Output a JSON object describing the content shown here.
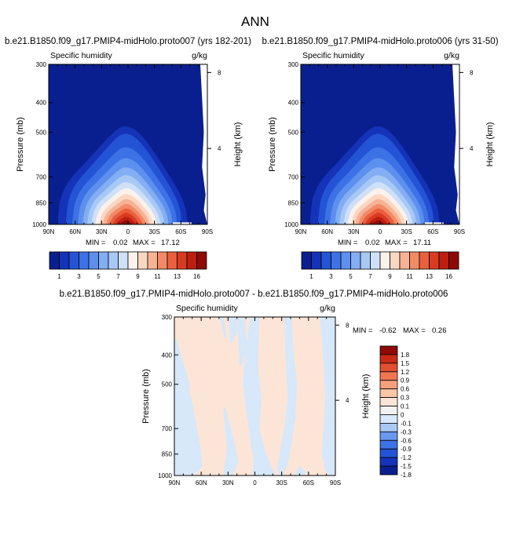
{
  "figure_title": "ANN",
  "colors": {
    "seq": [
      "#0a1f8f",
      "#1533b8",
      "#2454d6",
      "#3d72e6",
      "#5d8fee",
      "#83aef3",
      "#a8c9f6",
      "#cfe0f8",
      "#fbf2ec",
      "#fbd7c2",
      "#f7b295",
      "#f28a66",
      "#ea5f3e",
      "#d93b22",
      "#bd1e10",
      "#8f0a07"
    ],
    "diff": [
      "#0a1f8f",
      "#1533b8",
      "#2454d6",
      "#3d72e6",
      "#6a98ef",
      "#a8c9f6",
      "#d6e8fa",
      "#f2f2f2",
      "#fce5d6",
      "#fbc6a6",
      "#f6a07c",
      "#ef7651",
      "#e34f31",
      "#c92a17",
      "#8f0a07"
    ]
  },
  "chart_data": [
    {
      "type": "heatmap",
      "id": "panel1",
      "title": "b.e21.B1850.f09_g17.PMIP4-midHolo.proto007 (yrs 182-201)",
      "left_label": "Specific humidity",
      "right_label": "g/kg",
      "ylabel": "Pressure (mb)",
      "ylabel_right": "Height (km)",
      "x_ticks": [
        "90N",
        "60N",
        "30N",
        "0",
        "30S",
        "60S",
        "90S"
      ],
      "x_values": [
        90,
        60,
        30,
        0,
        -30,
        -60,
        -90
      ],
      "xlim": [
        90,
        -90
      ],
      "y_ticks": [
        300,
        400,
        500,
        700,
        850,
        1000
      ],
      "ylim": [
        1000,
        300
      ],
      "height_ticks": [
        8,
        4
      ],
      "min": "0.02",
      "max": "17.12",
      "min_label": "MIN =",
      "max_label": "MAX =",
      "levels": [
        1,
        2,
        3,
        4,
        5,
        6,
        7,
        8,
        9,
        10,
        11,
        12,
        13,
        14,
        16
      ],
      "colorbar_labels": [
        "1",
        "3",
        "5",
        "7",
        "9",
        "11",
        "13",
        "16"
      ]
    },
    {
      "type": "heatmap",
      "id": "panel2",
      "title": "b.e21.B1850.f09_g17.PMIP4-midHolo.proto006 (yrs 31-50)",
      "left_label": "Specific humidity",
      "right_label": "g/kg",
      "ylabel": "Pressure (mb)",
      "ylabel_right": "Height (km)",
      "x_ticks": [
        "90N",
        "60N",
        "30N",
        "0",
        "30S",
        "60S",
        "90S"
      ],
      "x_values": [
        90,
        60,
        30,
        0,
        -30,
        -60,
        -90
      ],
      "xlim": [
        90,
        -90
      ],
      "y_ticks": [
        300,
        400,
        500,
        700,
        850,
        1000
      ],
      "ylim": [
        1000,
        300
      ],
      "height_ticks": [
        8,
        4
      ],
      "min": "0.02",
      "max": "17.11",
      "min_label": "MIN =",
      "max_label": "MAX =",
      "levels": [
        1,
        2,
        3,
        4,
        5,
        6,
        7,
        8,
        9,
        10,
        11,
        12,
        13,
        14,
        16
      ],
      "colorbar_labels": [
        "1",
        "3",
        "5",
        "7",
        "9",
        "11",
        "13",
        "16"
      ]
    },
    {
      "type": "heatmap",
      "id": "panel3",
      "title": "b.e21.B1850.f09_g17.PMIP4-midHolo.proto007 - b.e21.B1850.f09_g17.PMIP4-midHolo.proto006",
      "left_label": "Specific humidity",
      "right_label": "g/kg",
      "ylabel": "Pressure (mb)",
      "ylabel_right": "Height (km)",
      "x_ticks": [
        "90N",
        "60N",
        "30N",
        "0",
        "30S",
        "60S",
        "90S"
      ],
      "x_values": [
        90,
        60,
        30,
        0,
        -30,
        -60,
        -90
      ],
      "xlim": [
        90,
        -90
      ],
      "y_ticks": [
        300,
        400,
        500,
        700,
        850,
        1000
      ],
      "ylim": [
        1000,
        300
      ],
      "height_ticks": [
        8,
        4
      ],
      "min": "-0.62",
      "max": "0.26",
      "min_label": "MIN =",
      "max_label": "MAX =",
      "levels": [
        -1.8,
        -1.5,
        -1.2,
        -0.9,
        -0.6,
        -0.3,
        -0.1,
        0,
        0.1,
        0.3,
        0.6,
        0.9,
        1.2,
        1.5,
        1.8
      ],
      "colorbar_labels": [
        "1.8",
        "1.5",
        "1.2",
        "0.9",
        "0.6",
        "0.3",
        "0.1",
        "0",
        "-0.1",
        "-0.3",
        "-0.6",
        "-0.9",
        "-1.2",
        "-1.5",
        "-1.8"
      ]
    }
  ]
}
